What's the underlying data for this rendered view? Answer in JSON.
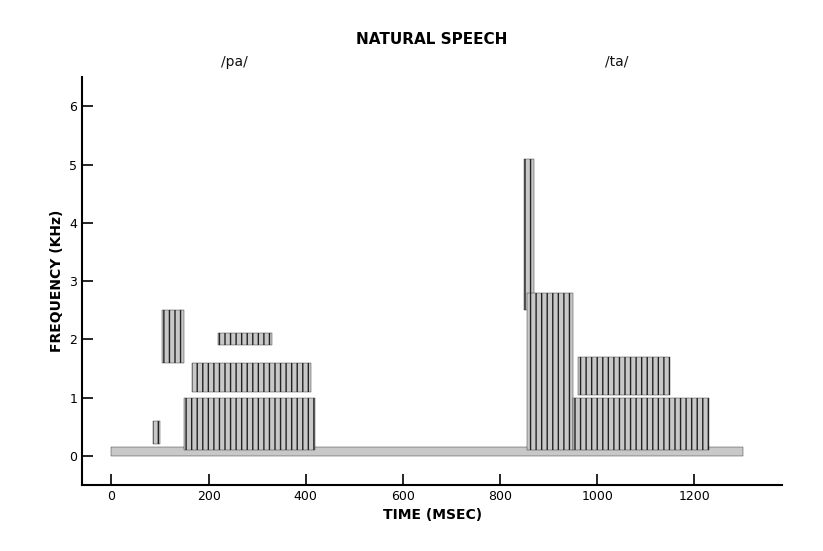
{
  "chart_data": {
    "type": "spectrogram",
    "title": "NATURAL SPEECH",
    "x_label": "TIME (MSEC)",
    "y_label": "FREQUENCY (KHz)",
    "xlim": [
      -60,
      1380
    ],
    "ylim": [
      -0.5,
      6.5
    ],
    "xticks": [
      0,
      200,
      400,
      600,
      800,
      1000,
      1200
    ],
    "yticks": [
      0,
      1,
      2,
      3,
      4,
      5,
      6
    ],
    "color": "#222222",
    "grid": false,
    "baseline": {
      "time": [
        0,
        1300
      ],
      "freq": [
        0,
        0.15
      ]
    },
    "segments": [
      {
        "label": "/pa/",
        "bands": [
          {
            "time": [
              85,
              100
            ],
            "freq": [
              0.2,
              0.6
            ]
          },
          {
            "time": [
              105,
              150
            ],
            "freq": [
              1.6,
              2.5
            ]
          },
          {
            "time": [
              150,
              420
            ],
            "freq": [
              0.1,
              1.0
            ]
          },
          {
            "time": [
              165,
              410
            ],
            "freq": [
              1.1,
              1.6
            ]
          },
          {
            "time": [
              220,
              330
            ],
            "freq": [
              1.9,
              2.1
            ]
          }
        ]
      },
      {
        "label": "/ta/",
        "bands": [
          {
            "time": [
              850,
              870
            ],
            "freq": [
              2.5,
              5.1
            ]
          },
          {
            "time": [
              855,
              950
            ],
            "freq": [
              0.1,
              2.8
            ]
          },
          {
            "time": [
              950,
              1230
            ],
            "freq": [
              0.1,
              1.0
            ]
          },
          {
            "time": [
              960,
              1150
            ],
            "freq": [
              1.05,
              1.7
            ]
          }
        ]
      }
    ]
  }
}
